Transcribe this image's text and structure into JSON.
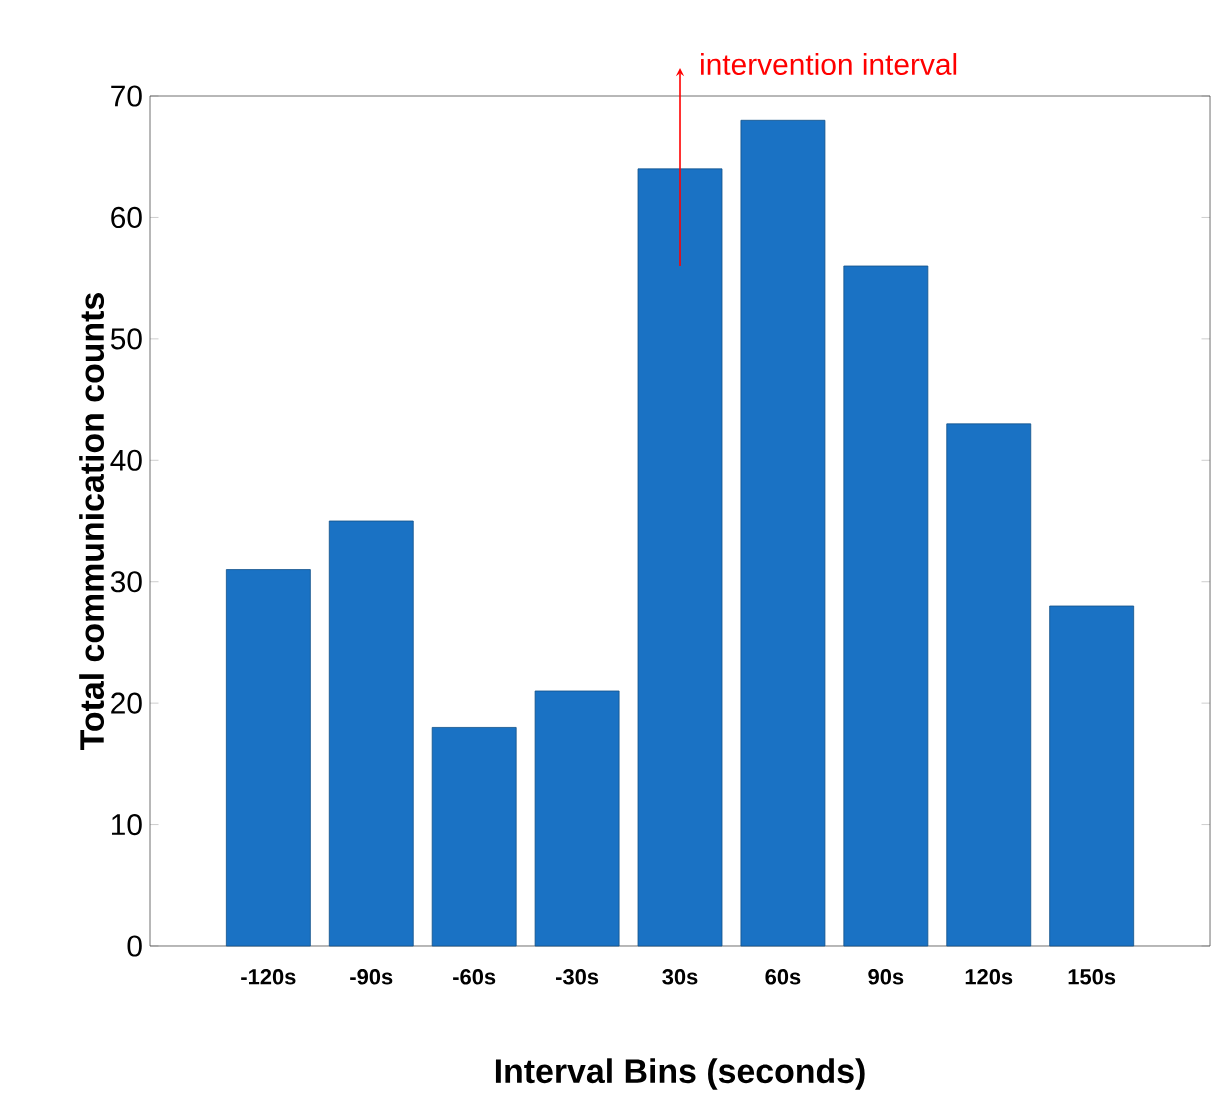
{
  "chart_data": {
    "type": "bar",
    "xlabel": "Interval Bins (seconds)",
    "ylabel": "Total communication counts",
    "categories": [
      "-120s",
      "-90s",
      "-60s",
      "-30s",
      "30s",
      "60s",
      "90s",
      "120s",
      "150s"
    ],
    "values": [
      31,
      35,
      18,
      21,
      64,
      68,
      56,
      43,
      28
    ],
    "color": "#1a72c4",
    "ylim": [
      0,
      70
    ],
    "yticks": [
      0,
      10,
      20,
      30,
      40,
      50,
      60,
      70
    ],
    "grid": false,
    "annotations": [
      "intervention interval"
    ]
  }
}
